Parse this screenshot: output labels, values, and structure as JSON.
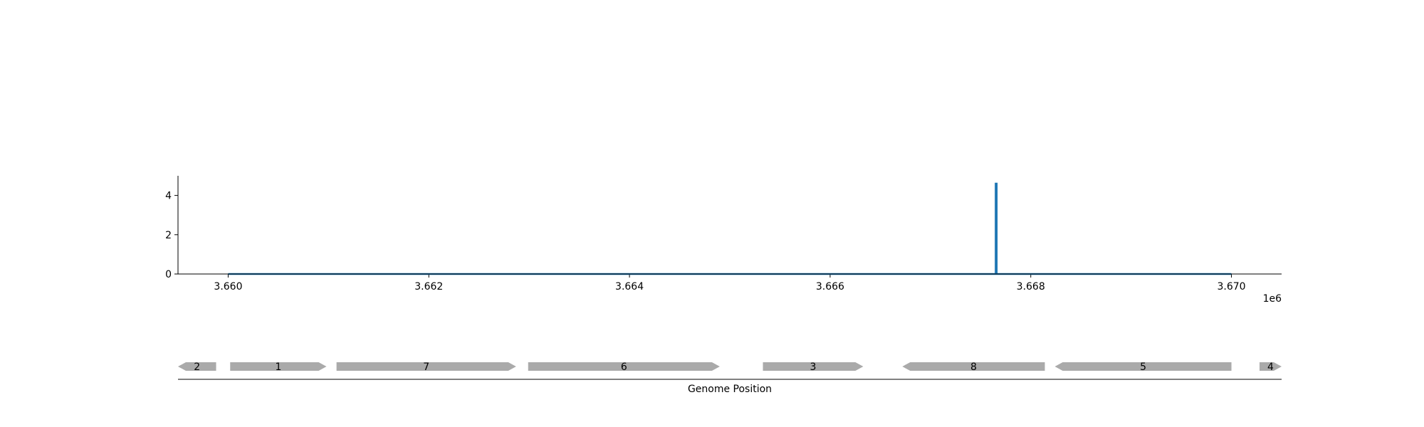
{
  "chart_data": [
    {
      "type": "line",
      "series": [
        {
          "x": [
            3660000,
            3667650,
            3667650,
            3667660,
            3667660,
            3670000
          ],
          "y": [
            0,
            0,
            4.6,
            4.6,
            0,
            0
          ],
          "color": "#1f77b4"
        }
      ],
      "xlim": [
        3659500,
        3670500
      ],
      "ylim": [
        0,
        5
      ],
      "xticks": [
        3660000,
        3662000,
        3664000,
        3666000,
        3668000,
        3670000
      ],
      "xtick_labels": [
        "3.660",
        "3.662",
        "3.664",
        "3.666",
        "3.668",
        "3.670"
      ],
      "x_offset_label": "1e6",
      "yticks": [
        0,
        2,
        4
      ],
      "ytick_labels": [
        "0",
        "2",
        "4"
      ],
      "grid": false
    },
    {
      "type": "gene-track",
      "xlim": [
        3659500,
        3670500
      ],
      "xlabel": "Genome Position",
      "gene_color": "#aaaaaa",
      "genes": [
        {
          "label": "2",
          "start": 3659500,
          "end": 3659880,
          "strand": "-"
        },
        {
          "label": "1",
          "start": 3660020,
          "end": 3660980,
          "strand": "+"
        },
        {
          "label": "7",
          "start": 3661080,
          "end": 3662870,
          "strand": "+"
        },
        {
          "label": "6",
          "start": 3662990,
          "end": 3664900,
          "strand": "+"
        },
        {
          "label": "3",
          "start": 3665330,
          "end": 3666330,
          "strand": "+"
        },
        {
          "label": "8",
          "start": 3666720,
          "end": 3668140,
          "strand": "-"
        },
        {
          "label": "5",
          "start": 3668240,
          "end": 3670000,
          "strand": "-"
        },
        {
          "label": "4",
          "start": 3670280,
          "end": 3670500,
          "strand": "+"
        }
      ]
    }
  ]
}
